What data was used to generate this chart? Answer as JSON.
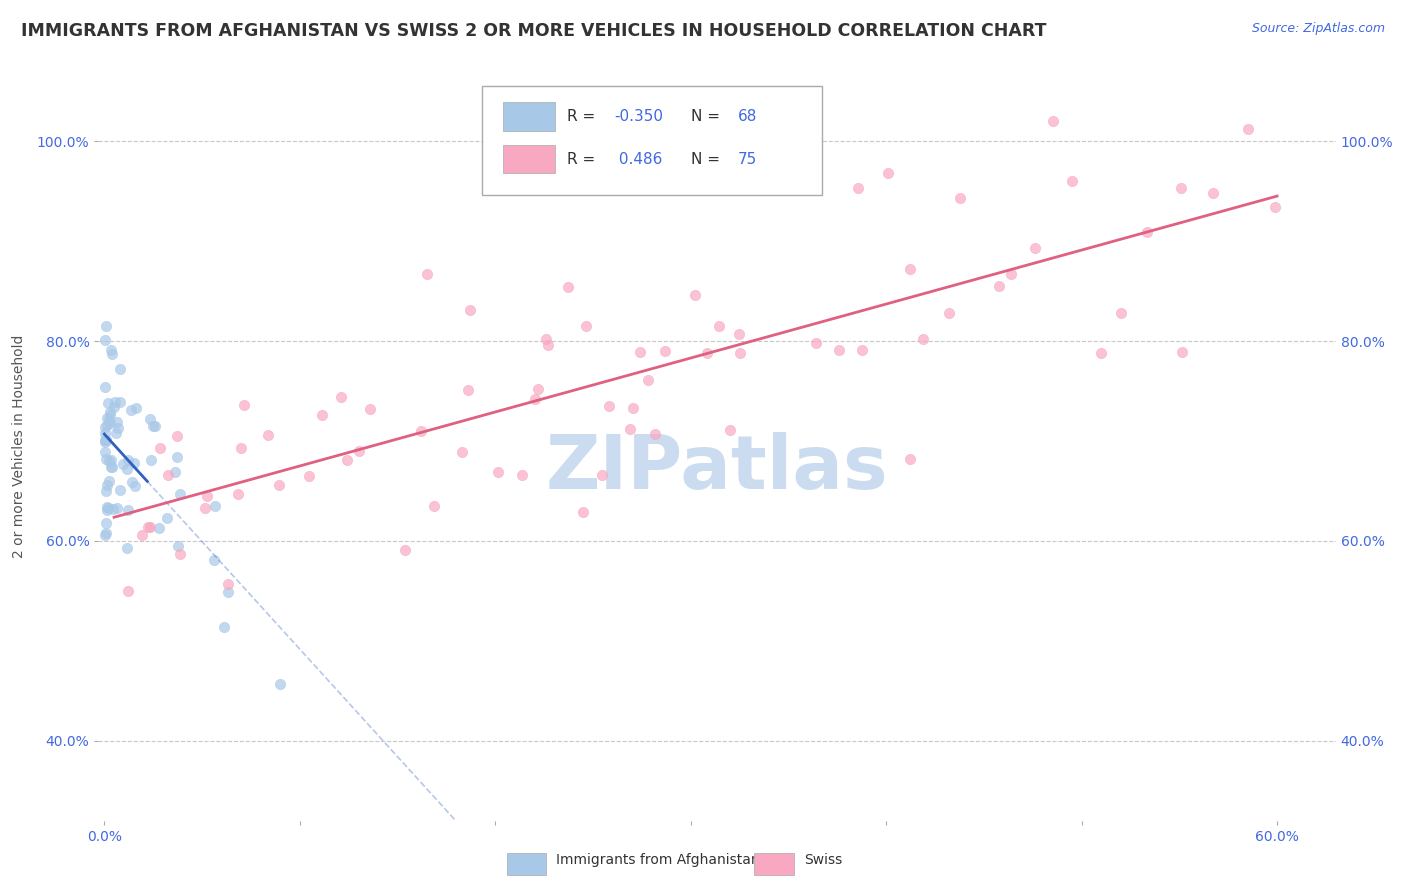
{
  "title": "IMMIGRANTS FROM AFGHANISTAN VS SWISS 2 OR MORE VEHICLES IN HOUSEHOLD CORRELATION CHART",
  "source": "Source: ZipAtlas.com",
  "ylabel": "2 or more Vehicles in Household",
  "yticks": [
    "40.0%",
    "60.0%",
    "80.0%",
    "100.0%"
  ],
  "ytick_vals": [
    0.4,
    0.6,
    0.8,
    1.0
  ],
  "legend1_label": "Immigrants from Afghanistan",
  "legend2_label": "Swiss",
  "R1": -0.35,
  "N1": 68,
  "R2": 0.486,
  "N2": 75,
  "color_blue": "#a8c8e8",
  "color_blue_line": "#3060c0",
  "color_pink": "#f8a8c0",
  "color_pink_line": "#e06080",
  "color_blue_text": "#4169E1",
  "watermark": "ZIPatlas",
  "watermark_color": "#ccdcf0",
  "xlim": [
    -0.003,
    0.63
  ],
  "ylim": [
    0.32,
    1.07
  ]
}
